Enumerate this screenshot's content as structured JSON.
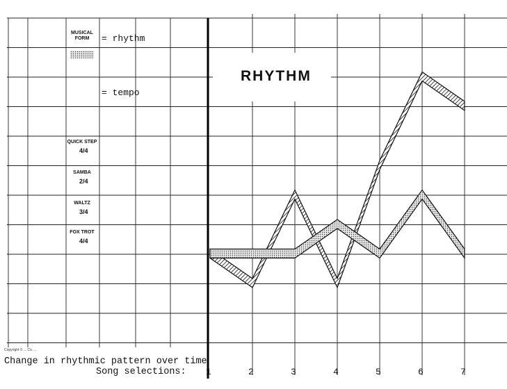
{
  "legend": {
    "musical_form_label_line1": "MUSICAL",
    "musical_form_label_line2": "FORM",
    "rhythm_text": "= rhythm",
    "tempo_text": "= tempo"
  },
  "tempo_labels": [
    {
      "name": "QUICK STEP",
      "fraction": "4/4"
    },
    {
      "name": "SAMBA",
      "fraction": "2/4"
    },
    {
      "name": "WALTZ",
      "fraction": "3/4"
    },
    {
      "name": "FOX TROT",
      "fraction": "4/4"
    }
  ],
  "copyright": "Copyright © ... Co. ...",
  "caption": "Change in rhythmic pattern over time",
  "chart_data": {
    "type": "line",
    "title": "RHYTHM",
    "xlabel": "Song selections:",
    "x": [
      1,
      2,
      3,
      4,
      5,
      6,
      7
    ],
    "xlim": [
      1,
      7
    ],
    "ylim": [
      0,
      11
    ],
    "grid": true,
    "series": [
      {
        "name": "rhythm",
        "values": [
          3.5,
          2.5,
          5.5,
          2.5,
          6.5,
          9.5,
          8.5
        ]
      },
      {
        "name": "tempo",
        "values": [
          3.5,
          3.5,
          3.5,
          4.5,
          3.5,
          5.5,
          3.5
        ]
      }
    ]
  },
  "colors": {
    "grid": "#222222",
    "rhythm_stroke": "#1a1a1a",
    "tempo_fill": "#d9d9d9"
  }
}
